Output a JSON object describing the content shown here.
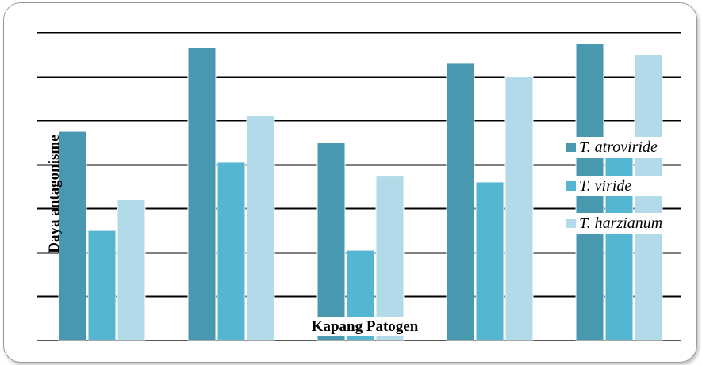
{
  "chart_data": {
    "type": "bar",
    "title": "",
    "xlabel": "Kapang Patogen",
    "ylabel": "Daya antagonisme",
    "categories": [
      "",
      "",
      "",
      "",
      ""
    ],
    "ylim": [
      0,
      7
    ],
    "grid": true,
    "legend_position": "right",
    "series": [
      {
        "name": "T. atroviride",
        "color": "#4898b0",
        "values": [
          4.75,
          6.65,
          4.5,
          6.3,
          6.75
        ]
      },
      {
        "name": "T. viride",
        "color": "#55b6d2",
        "values": [
          2.5,
          4.05,
          2.05,
          3.6,
          4.45
        ]
      },
      {
        "name": "T. harzianum",
        "color": "#b2dae8",
        "values": [
          3.2,
          5.1,
          3.75,
          6.0,
          6.5
        ]
      }
    ]
  }
}
